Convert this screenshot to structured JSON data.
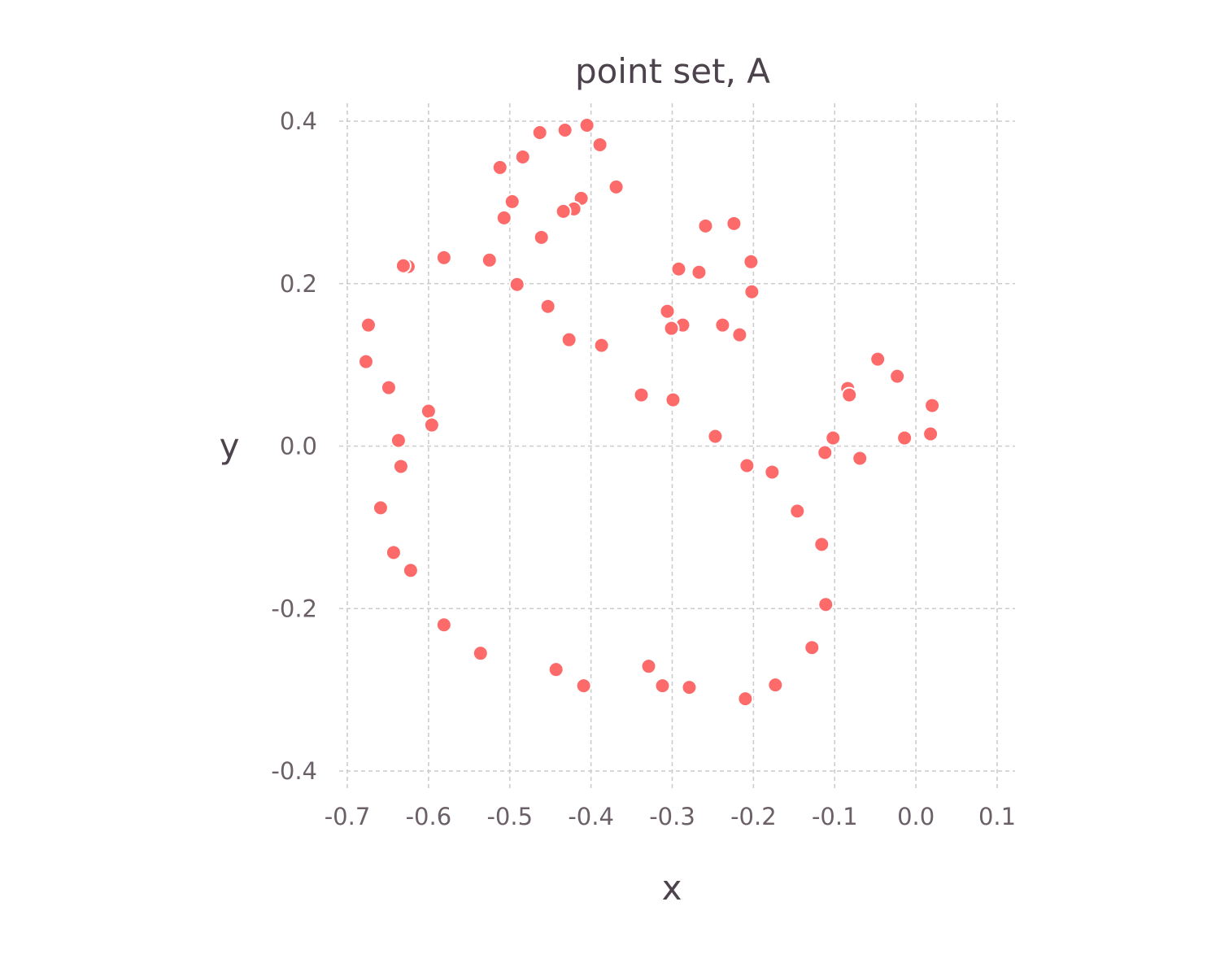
{
  "chart_data": {
    "type": "scatter",
    "title": "point set, A",
    "xlabel": "x",
    "ylabel": "y",
    "xlim": [
      -0.7,
      0.1
    ],
    "ylim": [
      -0.4,
      0.4
    ],
    "x_ticks": [
      -0.7,
      -0.6,
      -0.5,
      -0.4,
      -0.3,
      -0.2,
      -0.1,
      0.0,
      0.1
    ],
    "y_ticks": [
      -0.4,
      -0.2,
      0.0,
      0.2,
      0.4
    ],
    "x_tick_labels": [
      "-0.7",
      "-0.6",
      "-0.5",
      "-0.4",
      "-0.3",
      "-0.2",
      "-0.1",
      "0.0",
      "0.1"
    ],
    "y_tick_labels": [
      "-0.4",
      "-0.2",
      "0.0",
      "0.2",
      "0.4"
    ],
    "grid": true,
    "legend": "none",
    "color": "#fd6a6a",
    "series": [
      {
        "points": [
          [
            -0.405,
            0.395
          ],
          [
            -0.432,
            0.389
          ],
          [
            -0.463,
            0.386
          ],
          [
            -0.389,
            0.371
          ],
          [
            -0.484,
            0.356
          ],
          [
            -0.512,
            0.343
          ],
          [
            -0.369,
            0.319
          ],
          [
            -0.412,
            0.305
          ],
          [
            -0.497,
            0.301
          ],
          [
            -0.421,
            0.292
          ],
          [
            -0.434,
            0.289
          ],
          [
            -0.507,
            0.281
          ],
          [
            -0.259,
            0.271
          ],
          [
            -0.224,
            0.274
          ],
          [
            -0.461,
            0.257
          ],
          [
            -0.581,
            0.232
          ],
          [
            -0.525,
            0.229
          ],
          [
            -0.625,
            0.221
          ],
          [
            -0.631,
            0.222
          ],
          [
            -0.203,
            0.227
          ],
          [
            -0.292,
            0.218
          ],
          [
            -0.267,
            0.214
          ],
          [
            -0.491,
            0.199
          ],
          [
            -0.202,
            0.19
          ],
          [
            -0.453,
            0.172
          ],
          [
            -0.306,
            0.166
          ],
          [
            -0.674,
            0.149
          ],
          [
            -0.287,
            0.149
          ],
          [
            -0.301,
            0.145
          ],
          [
            -0.238,
            0.149
          ],
          [
            -0.217,
            0.137
          ],
          [
            -0.427,
            0.131
          ],
          [
            -0.387,
            0.124
          ],
          [
            -0.677,
            0.104
          ],
          [
            -0.047,
            0.107
          ],
          [
            -0.023,
            0.086
          ],
          [
            -0.649,
            0.072
          ],
          [
            -0.084,
            0.071
          ],
          [
            -0.082,
            0.063
          ],
          [
            -0.338,
            0.063
          ],
          [
            -0.299,
            0.057
          ],
          [
            0.02,
            0.05
          ],
          [
            -0.6,
            0.043
          ],
          [
            -0.596,
            0.026
          ],
          [
            -0.247,
            0.012
          ],
          [
            0.018,
            0.015
          ],
          [
            -0.014,
            0.01
          ],
          [
            -0.102,
            0.01
          ],
          [
            -0.637,
            0.007
          ],
          [
            -0.112,
            -0.008
          ],
          [
            -0.069,
            -0.015
          ],
          [
            -0.208,
            -0.024
          ],
          [
            -0.634,
            -0.025
          ],
          [
            -0.177,
            -0.032
          ],
          [
            -0.659,
            -0.076
          ],
          [
            -0.146,
            -0.08
          ],
          [
            -0.116,
            -0.121
          ],
          [
            -0.643,
            -0.131
          ],
          [
            -0.622,
            -0.153
          ],
          [
            -0.111,
            -0.195
          ],
          [
            -0.581,
            -0.22
          ],
          [
            -0.128,
            -0.248
          ],
          [
            -0.536,
            -0.255
          ],
          [
            -0.443,
            -0.275
          ],
          [
            -0.329,
            -0.271
          ],
          [
            -0.409,
            -0.295
          ],
          [
            -0.312,
            -0.295
          ],
          [
            -0.279,
            -0.297
          ],
          [
            -0.173,
            -0.294
          ],
          [
            -0.21,
            -0.311
          ]
        ]
      }
    ]
  }
}
